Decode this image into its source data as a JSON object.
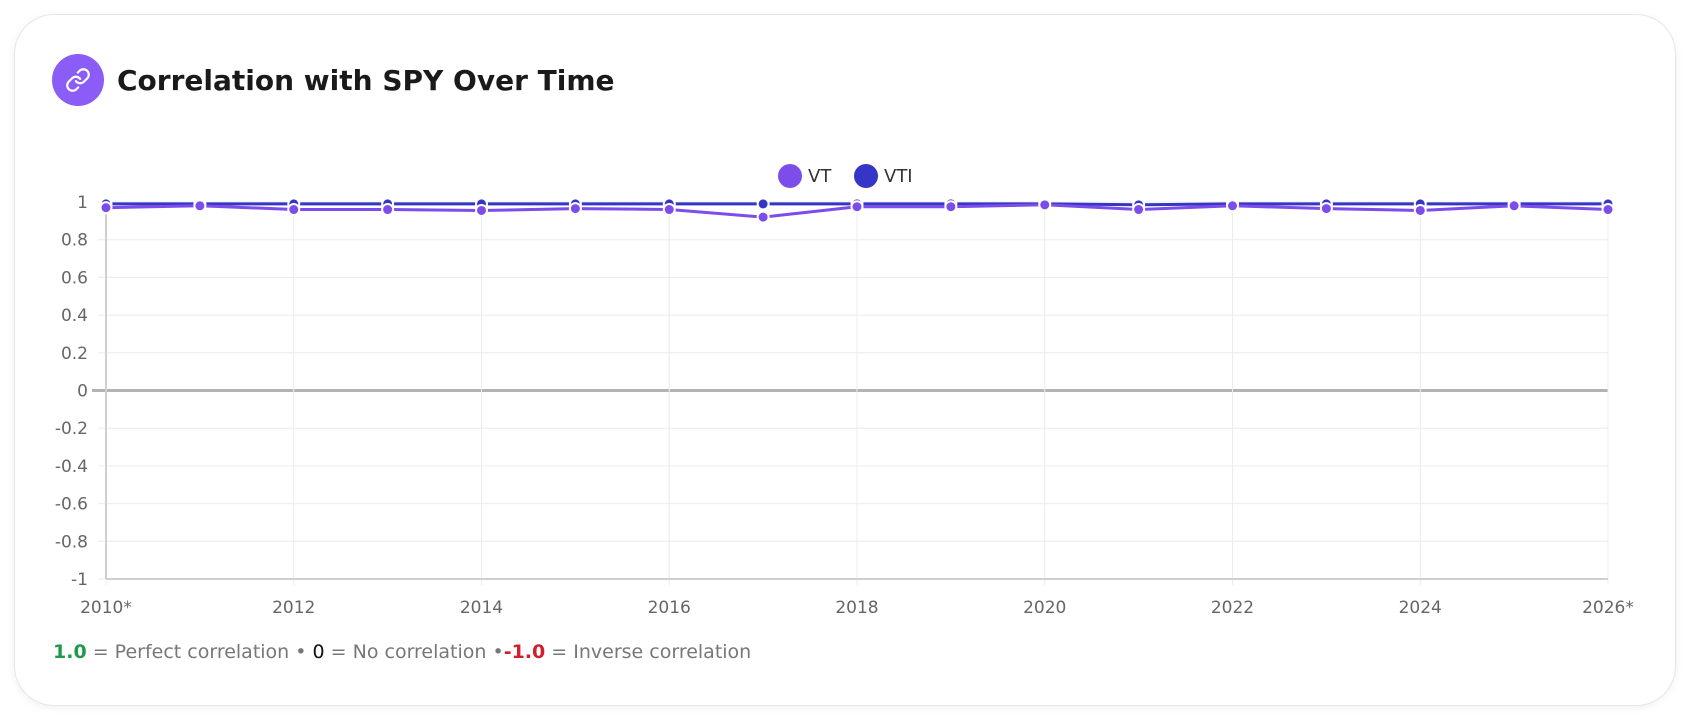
{
  "header": {
    "title": "Correlation with SPY Over Time",
    "icon": "link-icon",
    "icon_color": "#8b5cf6"
  },
  "legend": {
    "placement": "top-center",
    "items": [
      {
        "label": "VT",
        "color": "#7c4dea"
      },
      {
        "label": "VTI",
        "color": "#3535c6"
      }
    ]
  },
  "footnote": {
    "value_perfect": "1.0",
    "text_perfect": "= Perfect correlation •",
    "value_none": "0",
    "text_none": "= No correlation •",
    "value_inverse": "-1.0",
    "text_inverse": "= Inverse correlation",
    "color_perfect": "#1f9a4a",
    "color_inverse": "#d0202f"
  },
  "chart_data": {
    "type": "line",
    "x": [
      "2010*",
      "2011",
      "2012",
      "2013",
      "2014",
      "2015",
      "2016",
      "2017",
      "2018",
      "2019",
      "2020",
      "2021",
      "2022",
      "2023",
      "2024",
      "2025",
      "2026*"
    ],
    "x_tick_labels": [
      "2010*",
      "2012",
      "2014",
      "2016",
      "2018",
      "2020",
      "2022",
      "2024",
      "2026*"
    ],
    "y_ticks": [
      "1",
      "0.8",
      "0.6",
      "0.4",
      "0.2",
      "0",
      "-0.2",
      "-0.4",
      "-0.6",
      "-0.8",
      "-1"
    ],
    "ylim": [
      -1,
      1
    ],
    "grid": true,
    "series": [
      {
        "name": "VT",
        "color": "#7c4dea",
        "values": [
          0.97,
          0.98,
          0.96,
          0.96,
          0.955,
          0.965,
          0.96,
          0.92,
          0.975,
          0.975,
          0.985,
          0.96,
          0.98,
          0.965,
          0.955,
          0.98,
          0.96
        ]
      },
      {
        "name": "VTI",
        "color": "#3535c6",
        "values": [
          0.99,
          0.99,
          0.99,
          0.99,
          0.99,
          0.99,
          0.99,
          0.99,
          0.99,
          0.99,
          0.99,
          0.985,
          0.99,
          0.99,
          0.99,
          0.99,
          0.99
        ]
      }
    ]
  }
}
